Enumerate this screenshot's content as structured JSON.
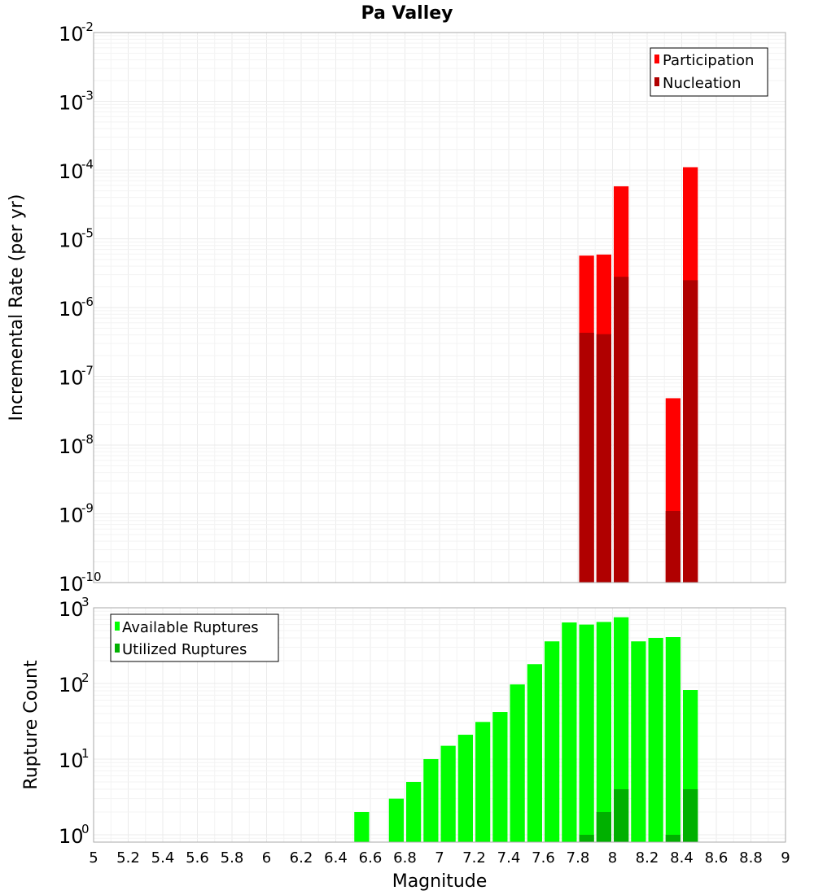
{
  "chart_data": [
    {
      "type": "bar",
      "title": "Pa Valley",
      "xlabel": "",
      "ylabel": "Incremental Rate (per yr)",
      "yscale": "log",
      "ylim": [
        1e-10,
        0.01
      ],
      "xlim": [
        5,
        9
      ],
      "grid": true,
      "legend_position": "top-right",
      "series": [
        {
          "name": "Participation",
          "color": "#ff0000",
          "x": [
            7.85,
            7.95,
            8.05,
            8.35,
            8.45
          ],
          "values": [
            5.7e-06,
            5.9e-06,
            5.8e-05,
            4.8e-08,
            0.00011
          ]
        },
        {
          "name": "Nucleation",
          "color": "#b00000",
          "x": [
            7.85,
            7.95,
            8.05,
            8.35,
            8.45
          ],
          "values": [
            4.3e-07,
            4.1e-07,
            2.8e-06,
            1.1e-09,
            2.5e-06
          ]
        }
      ]
    },
    {
      "type": "bar",
      "title": "",
      "xlabel": "Magnitude",
      "ylabel": "Rupture Count",
      "yscale": "log",
      "ylim": [
        0.8,
        1000
      ],
      "xlim": [
        5,
        9
      ],
      "grid": true,
      "legend_position": "top-left",
      "x_ticks": [
        "5",
        "5.2",
        "5.4",
        "5.6",
        "5.8",
        "6",
        "6.2",
        "6.4",
        "6.6",
        "6.8",
        "7",
        "7.2",
        "7.4",
        "7.6",
        "7.8",
        "8",
        "8.2",
        "8.4",
        "8.6",
        "8.8",
        "9"
      ],
      "series": [
        {
          "name": "Available Ruptures",
          "color": "#00ff00",
          "x": [
            6.55,
            6.75,
            6.85,
            6.95,
            7.05,
            7.15,
            7.25,
            7.35,
            7.45,
            7.55,
            7.65,
            7.75,
            7.85,
            7.95,
            8.05,
            8.15,
            8.25,
            8.35,
            8.45
          ],
          "values": [
            2,
            3,
            5,
            10,
            15,
            21,
            31,
            42,
            97,
            180,
            360,
            640,
            600,
            650,
            750,
            360,
            400,
            410,
            82
          ]
        },
        {
          "name": "Utilized Ruptures",
          "color": "#00b000",
          "x": [
            7.85,
            7.95,
            8.05,
            8.35,
            8.45
          ],
          "values": [
            1,
            2,
            4,
            1,
            4
          ]
        }
      ]
    }
  ]
}
